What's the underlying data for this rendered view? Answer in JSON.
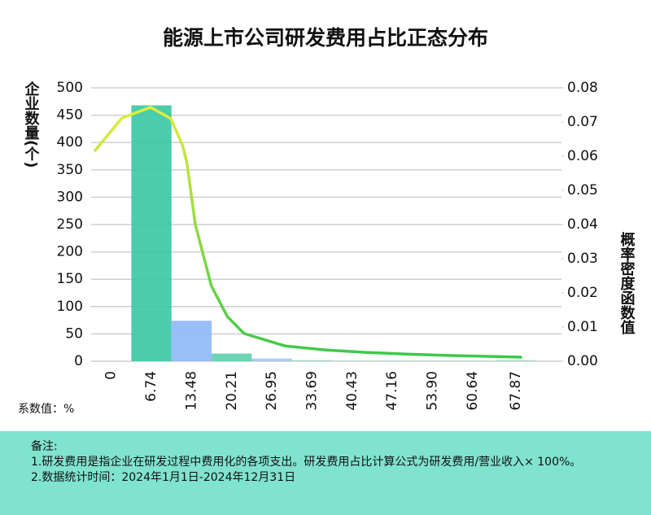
{
  "chart_data": {
    "type": "bar",
    "title": "能源上市公司研发费用占比正态分布",
    "y_label": "企业数量(个)",
    "y2_label": "概率密度函数值",
    "x_note": "系数值：%",
    "categories": [
      0,
      6.74,
      13.48,
      20.21,
      26.95,
      33.69,
      40.43,
      47.16,
      {
        "value": 53.9,
        "label": "53.90"
      },
      60.64,
      67.87
    ],
    "xlim": [
      -3.37,
      70.74
    ],
    "ylim": [
      0,
      500
    ],
    "yticks": [
      0,
      50,
      100,
      150,
      200,
      250,
      300,
      350,
      400,
      450,
      500
    ],
    "y2lim": [
      0,
      0.08
    ],
    "y2ticks": [
      {
        "value": 0,
        "label": "0.00"
      },
      {
        "value": 0.01,
        "label": "0.01"
      },
      {
        "value": 0.02,
        "label": "0.02"
      },
      {
        "value": 0.03,
        "label": "0.03"
      },
      {
        "value": 0.04,
        "label": "0.04"
      },
      {
        "value": 0.05,
        "label": "0.05"
      },
      {
        "value": 0.06,
        "label": "0.06"
      },
      {
        "value": 0.07,
        "label": "0.07"
      },
      {
        "value": 0.08,
        "label": "0.08"
      }
    ],
    "grid": true,
    "series": [
      {
        "type": "bar",
        "values": [
          0,
          468,
          74,
          14,
          5,
          2,
          1,
          1,
          1,
          1,
          2
        ],
        "colors": [
          "#3cc9a6",
          "#3cc9a6",
          "#8fbaf7",
          "#5fd0b0",
          "#a9c8f5",
          "#9fd8c8",
          "#9fd8c8",
          "#9fd8c8",
          "#9fd8c8",
          "#9fd8c8",
          "#9fd8c8"
        ]
      },
      {
        "type": "line",
        "axis": "y2",
        "color": "#9ee03a",
        "x": [
          -2.7,
          1.8,
          6.6,
          10,
          12,
          12.7,
          14.1,
          16.8,
          19.5,
          22.3,
          29.1,
          35.9,
          42.7,
          49.6,
          56.4,
          68.7
        ],
        "values": [
          0.0617,
          0.0712,
          0.0743,
          0.071,
          0.063,
          0.058,
          0.04,
          0.022,
          0.013,
          0.0081,
          0.0045,
          0.0033,
          0.0026,
          0.0021,
          0.0017,
          0.0012
        ]
      }
    ],
    "notes": {
      "title": "备注:",
      "items": [
        "1.研发费用是指企业在研发过程中费用化的各项支出。研发费用占比计算公式为研发费用/营业收入× 100%。",
        "2.数据统计时间：2024年1月1日-2024年12月31日"
      ]
    }
  }
}
